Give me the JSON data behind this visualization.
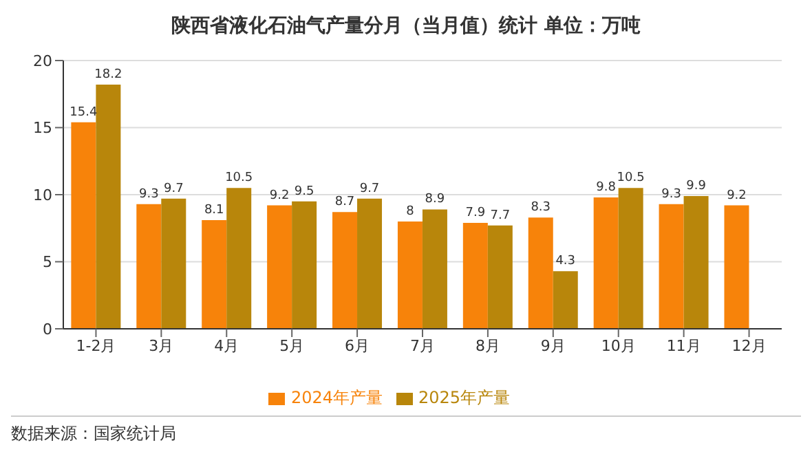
{
  "chart_data": {
    "type": "bar",
    "title": "陕西省液化石油气产量分月（当月值）统计  单位：万吨",
    "categories": [
      "1-2月",
      "3月",
      "4月",
      "5月",
      "6月",
      "7月",
      "8月",
      "9月",
      "10月",
      "11月",
      "12月"
    ],
    "series": [
      {
        "name": "2024年产量",
        "color": "#f7830a",
        "values": [
          15.4,
          9.3,
          8.1,
          9.2,
          8.7,
          8,
          7.9,
          8.3,
          9.8,
          9.3,
          9.2
        ]
      },
      {
        "name": "2025年产量",
        "color": "#b8860b",
        "values": [
          18.2,
          9.7,
          10.5,
          9.5,
          9.7,
          8.9,
          7.7,
          4.3,
          10.5,
          9.9,
          null
        ]
      }
    ],
    "ylim": [
      0,
      20
    ],
    "yticks": [
      0,
      5,
      10,
      15,
      20
    ],
    "grid": "y",
    "legend": "bottom",
    "data_labels": true,
    "annotations": [
      "数据来源：国家统计局"
    ]
  }
}
